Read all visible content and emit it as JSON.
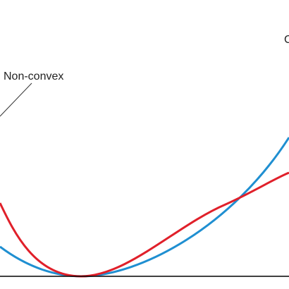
{
  "labels": {
    "non_convex": "Non-convex",
    "convex": "C"
  }
}
